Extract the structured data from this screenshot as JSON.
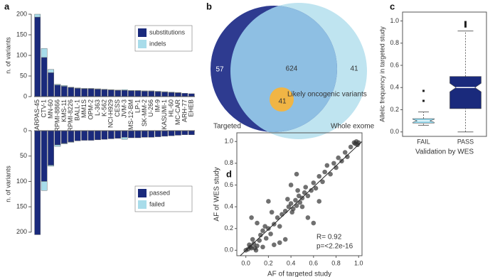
{
  "chart_data": [
    {
      "type": "bar",
      "panel": "a",
      "ylabel": "n. of variants",
      "categories": [
        "KARPAS-45",
        "CTV-1",
        "MN-60",
        "RPMI-8866",
        "KMS-11",
        "RPMI-8226",
        "BALL-1",
        "MM1S",
        "OPM-2",
        "L-363",
        "K-562",
        "NCI-H929",
        "CESS",
        "JVM-3",
        "KMS-12-BM",
        "LP-1",
        "SK-MM-2",
        "U-266",
        "IM-9",
        "KASUMI-1",
        "HL-60",
        "MC-CAR",
        "ARH-77",
        "EHEB"
      ],
      "series": [
        {
          "name": "substitutions",
          "color": "#1a2a7c",
          "values": [
            193,
            95,
            58,
            28,
            25,
            22,
            20,
            19,
            19,
            18,
            17,
            16,
            15,
            15,
            14,
            14,
            13,
            13,
            12,
            11,
            10,
            9,
            8,
            7
          ]
        },
        {
          "name": "indels",
          "color": "#a8dcea",
          "values": [
            7,
            22,
            8,
            2,
            2,
            1,
            1,
            1,
            1,
            1,
            1,
            1,
            1,
            2,
            1,
            1,
            1,
            1,
            1,
            1,
            1,
            1,
            0,
            0
          ]
        }
      ],
      "ylim": [
        0,
        200
      ],
      "yticks": [
        0,
        50,
        100,
        150,
        200
      ]
    },
    {
      "type": "bar",
      "ylabel": "n. of variants",
      "y_inverted": true,
      "series": [
        {
          "name": "passed",
          "color": "#1a2a7c",
          "values": [
            205,
            100,
            68,
            28,
            25,
            22,
            20,
            19,
            19,
            18,
            17,
            16,
            15,
            13,
            14,
            14,
            13,
            13,
            12,
            11,
            10,
            9,
            8,
            8
          ]
        },
        {
          "name": "failed",
          "color": "#a8dcea",
          "values": [
            0,
            18,
            2,
            3,
            1,
            1,
            0,
            0,
            0,
            0,
            0,
            0,
            0,
            4,
            0,
            0,
            0,
            0,
            0,
            0,
            0,
            0,
            0,
            0
          ]
        }
      ],
      "ylim": [
        0,
        210
      ],
      "yticks": [
        0,
        50,
        100,
        150,
        200
      ]
    },
    {
      "type": "venn",
      "panel": "b",
      "sets": [
        {
          "name": "Targeted",
          "color": "#2e3b90"
        },
        {
          "name": "Whole exome",
          "color": "#bfe4f0"
        },
        {
          "name": "Likely oncogenic variants",
          "color": "#f0b545"
        }
      ],
      "overlap_color": "#8ebfe3",
      "values": [
        57,
        624,
        41,
        41
      ]
    },
    {
      "type": "box",
      "panel": "c",
      "ylabel": "Allelic frequency in targeted study",
      "xlabel": "Validation by WES",
      "categories": [
        "FAIL",
        "PASS"
      ],
      "colors": [
        "#8fd3e8",
        "#1a2a7c"
      ],
      "boxes": [
        {
          "whisker_low": 0.06,
          "q1": 0.08,
          "median": 0.1,
          "q3": 0.12,
          "whisker_high": 0.18,
          "outliers": [
            0.28,
            0.37
          ]
        },
        {
          "whisker_low": 0.0,
          "q1": 0.21,
          "median": 0.4,
          "q3": 0.5,
          "whisker_high": 0.91,
          "outliers": [
            0.95,
            0.96,
            0.97,
            0.98,
            0.99
          ]
        }
      ],
      "ylim": [
        -0.04,
        1.08
      ],
      "yticks": [
        {
          "value": 0,
          "label": "0.0"
        },
        {
          "value": 0.2,
          "label": "0.2"
        },
        {
          "value": 0.4,
          "label": "0.4"
        },
        {
          "value": 0.6,
          "label": "0.6"
        },
        {
          "value": 0.8,
          "label": "0.8"
        },
        {
          "value": 1,
          "label": "1.0"
        }
      ]
    },
    {
      "type": "scatter",
      "panel": "d",
      "xlabel": "AF of targeted study",
      "ylabel": "AF of WES study",
      "annotations": [
        "R= 0.92",
        "p=<2.2e-16"
      ],
      "color": "#333333",
      "x": [
        0.02,
        0.04,
        0.05,
        0.07,
        0.03,
        0.08,
        0.1,
        0.06,
        0.12,
        0.09,
        0.15,
        0.0,
        0.13,
        0.18,
        0.2,
        0.17,
        0.22,
        0.25,
        0.28,
        0.23,
        0.3,
        0.32,
        0.35,
        0.38,
        0.4,
        0.42,
        0.44,
        0.45,
        0.47,
        0.48,
        0.5,
        0.52,
        0.55,
        0.37,
        0.41,
        0.46,
        0.5,
        0.53,
        0.58,
        0.6,
        0.62,
        0.65,
        0.68,
        0.7,
        0.72,
        0.75,
        0.78,
        0.8,
        0.82,
        0.85,
        0.88,
        0.9,
        0.93,
        0.96,
        0.98,
        0.97,
        1.0,
        0.99,
        0.05,
        0.1,
        0.3,
        0.35,
        0.6,
        0.45,
        0.2,
        0.55,
        0.25,
        0.15,
        0.4,
        0.65
      ],
      "values": [
        0.01,
        0.03,
        0.02,
        0.06,
        0.05,
        0.02,
        0.04,
        0.1,
        0.09,
        0.0,
        0.03,
        0.0,
        0.14,
        0.11,
        0.2,
        0.22,
        0.15,
        0.24,
        0.3,
        0.35,
        0.22,
        0.33,
        0.36,
        0.4,
        0.43,
        0.38,
        0.46,
        0.41,
        0.5,
        0.44,
        0.48,
        0.53,
        0.5,
        0.47,
        0.35,
        0.55,
        0.4,
        0.58,
        0.55,
        0.62,
        0.57,
        0.68,
        0.63,
        0.72,
        0.78,
        0.7,
        0.8,
        0.76,
        0.85,
        0.82,
        0.9,
        0.86,
        0.95,
        0.99,
        1.0,
        0.98,
        0.99,
        0.97,
        0.3,
        0.25,
        0.07,
        0.1,
        0.25,
        0.7,
        0.45,
        0.3,
        0.05,
        0.18,
        0.6,
        0.45
      ],
      "regression": {
        "x": [
          -0.05,
          1.03
        ],
        "values": [
          -0.05,
          1.0
        ]
      },
      "xlim": [
        -0.08,
        1.03
      ],
      "ylim": [
        -0.05,
        1.08
      ],
      "xticks": [
        {
          "value": 0,
          "label": "0.0"
        },
        {
          "value": 0.2,
          "label": "0.2"
        },
        {
          "value": 0.4,
          "label": "0.4"
        },
        {
          "value": 0.6,
          "label": "0.6"
        },
        {
          "value": 0.8,
          "label": "0.8"
        },
        {
          "value": 1,
          "label": "1.0"
        }
      ],
      "yticks": [
        {
          "value": 0,
          "label": "0.0"
        },
        {
          "value": 0.2,
          "label": "0.2"
        },
        {
          "value": 0.4,
          "label": "0.4"
        },
        {
          "value": 0.6,
          "label": "0.6"
        },
        {
          "value": 0.8,
          "label": "0.8"
        },
        {
          "value": 1,
          "label": "1.0"
        }
      ]
    }
  ]
}
